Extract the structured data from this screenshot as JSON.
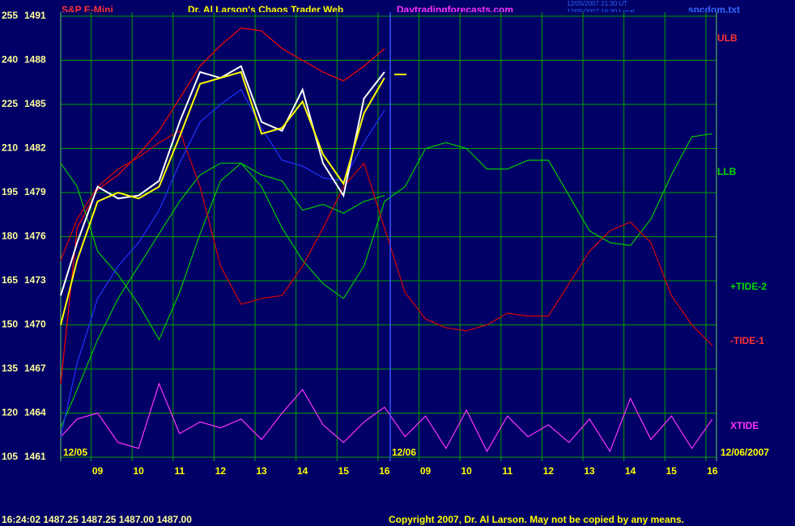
{
  "chart_data": {
    "type": "line",
    "instrument": "S&P E-Mini",
    "title": "Dr. Al Larson's Chaos Trader Web",
    "site": "Daytradingforecasts.com",
    "timestamps": [
      "12/05/2007 21:30 UT",
      "12/05/2007 16:30 Local"
    ],
    "file": "spcdom.txt",
    "date_labels": [
      "12/05",
      "12/06",
      "12/06/2007"
    ],
    "quote": "16:24:02  1487.25 1487.25 1487.00 1487.00",
    "copyright": "Copyright 2007, Dr. Al Larson. May not be copied by any means.",
    "x": [
      8.1,
      8.5,
      9,
      9.5,
      10,
      10.5,
      11,
      11.5,
      12,
      12.5,
      13,
      13.5,
      14,
      14.5,
      15,
      15.5,
      16,
      16.5,
      17,
      17.5,
      18,
      18.5,
      19,
      19.5,
      20,
      20.5,
      21,
      21.5,
      22,
      22.5,
      23,
      23.5,
      24
    ],
    "xlim": [
      8.1,
      24.1
    ],
    "xticks": [
      {
        "value": 9,
        "label": "09"
      },
      10,
      11,
      12,
      13,
      14,
      15,
      16,
      {
        "value": 17,
        "label": "09"
      },
      {
        "value": 18,
        "label": "10"
      },
      {
        "value": 19,
        "label": "11"
      },
      {
        "value": 20,
        "label": "12"
      },
      {
        "value": 21,
        "label": "13"
      },
      {
        "value": 22,
        "label": "14"
      },
      {
        "value": 23,
        "label": "15"
      },
      {
        "value": 24,
        "label": "16"
      }
    ],
    "ylim": [
      105,
      255
    ],
    "yticks": [
      105,
      120,
      135,
      150,
      165,
      180,
      195,
      210,
      225,
      240,
      255
    ],
    "y2lim": [
      1461,
      1491
    ],
    "y2ticks": [
      1461,
      1464,
      1467,
      1470,
      1473,
      1476,
      1479,
      1482,
      1485,
      1488,
      1491
    ],
    "grid": true,
    "series": [
      {
        "color": "#ff0000",
        "name": "ULB",
        "values": [
          130,
          183,
          196,
          201,
          208,
          216,
          227,
          238,
          245,
          251,
          250,
          244,
          240,
          236,
          233,
          238,
          244,
          null,
          null,
          null,
          null,
          null,
          null,
          null,
          null,
          null,
          null,
          null,
          null,
          null,
          null,
          null,
          null
        ]
      },
      {
        "color": "#00cc00",
        "name": "LLB",
        "values": [
          115,
          128,
          145,
          159,
          170,
          181,
          192,
          201,
          205,
          205,
          197,
          183,
          172,
          164,
          159,
          170,
          192,
          197,
          210,
          212,
          210,
          203,
          203,
          206,
          206,
          194,
          182,
          178,
          177,
          186,
          201,
          214,
          215
        ]
      },
      {
        "color": "#00cc00",
        "name": "+TIDE-2",
        "values": [
          205,
          197,
          175,
          167,
          157,
          145,
          161,
          181,
          199,
          205,
          201,
          199,
          189,
          191,
          188,
          192,
          194,
          null,
          null,
          null,
          null,
          null,
          null,
          null,
          null,
          null,
          null,
          null,
          null,
          null,
          null,
          null,
          null
        ]
      },
      {
        "color": "#dd0000",
        "name": "-TIDE-1",
        "values": [
          172,
          186,
          197,
          203,
          207,
          212,
          216,
          197,
          170,
          157,
          159,
          160,
          170,
          183,
          197,
          205,
          183,
          161,
          152,
          149,
          148,
          150,
          154,
          153,
          153,
          164,
          175,
          182,
          185,
          178,
          160,
          150,
          143
        ]
      },
      {
        "color": "#ff33ff",
        "name": "XTIDE",
        "values": [
          112,
          118,
          120,
          110,
          108,
          130,
          113,
          117,
          115,
          118,
          111,
          120,
          128,
          116,
          110,
          117,
          122,
          112,
          119,
          108,
          121,
          107,
          119,
          112,
          116,
          110,
          118,
          107,
          125,
          111,
          119,
          108,
          118
        ]
      },
      {
        "color": "#2233ff",
        "values": [
          112,
          137,
          159,
          170,
          178,
          189,
          205,
          219,
          225,
          230,
          217,
          206,
          204,
          200,
          199,
          212,
          223,
          null,
          null,
          null,
          null,
          null,
          null,
          null,
          null,
          null,
          null,
          null,
          null,
          null,
          null,
          null,
          null
        ]
      },
      {
        "color": "#ffffff",
        "values": [
          160,
          178,
          197,
          193,
          194,
          199,
          219,
          236,
          234,
          238,
          219,
          216,
          230,
          205,
          194,
          227,
          236,
          null,
          null,
          null,
          null,
          null,
          null,
          null,
          null,
          null,
          null,
          null,
          null,
          null,
          null,
          null,
          null
        ]
      },
      {
        "color": "#ffff00",
        "values": [
          150,
          172,
          192,
          195,
          193,
          197,
          214,
          232,
          234,
          236,
          215,
          217,
          226,
          208,
          198,
          222,
          234,
          null,
          null,
          null,
          null,
          null,
          null,
          null,
          null,
          null,
          null,
          null,
          null,
          null,
          null,
          null,
          null
        ]
      }
    ]
  }
}
